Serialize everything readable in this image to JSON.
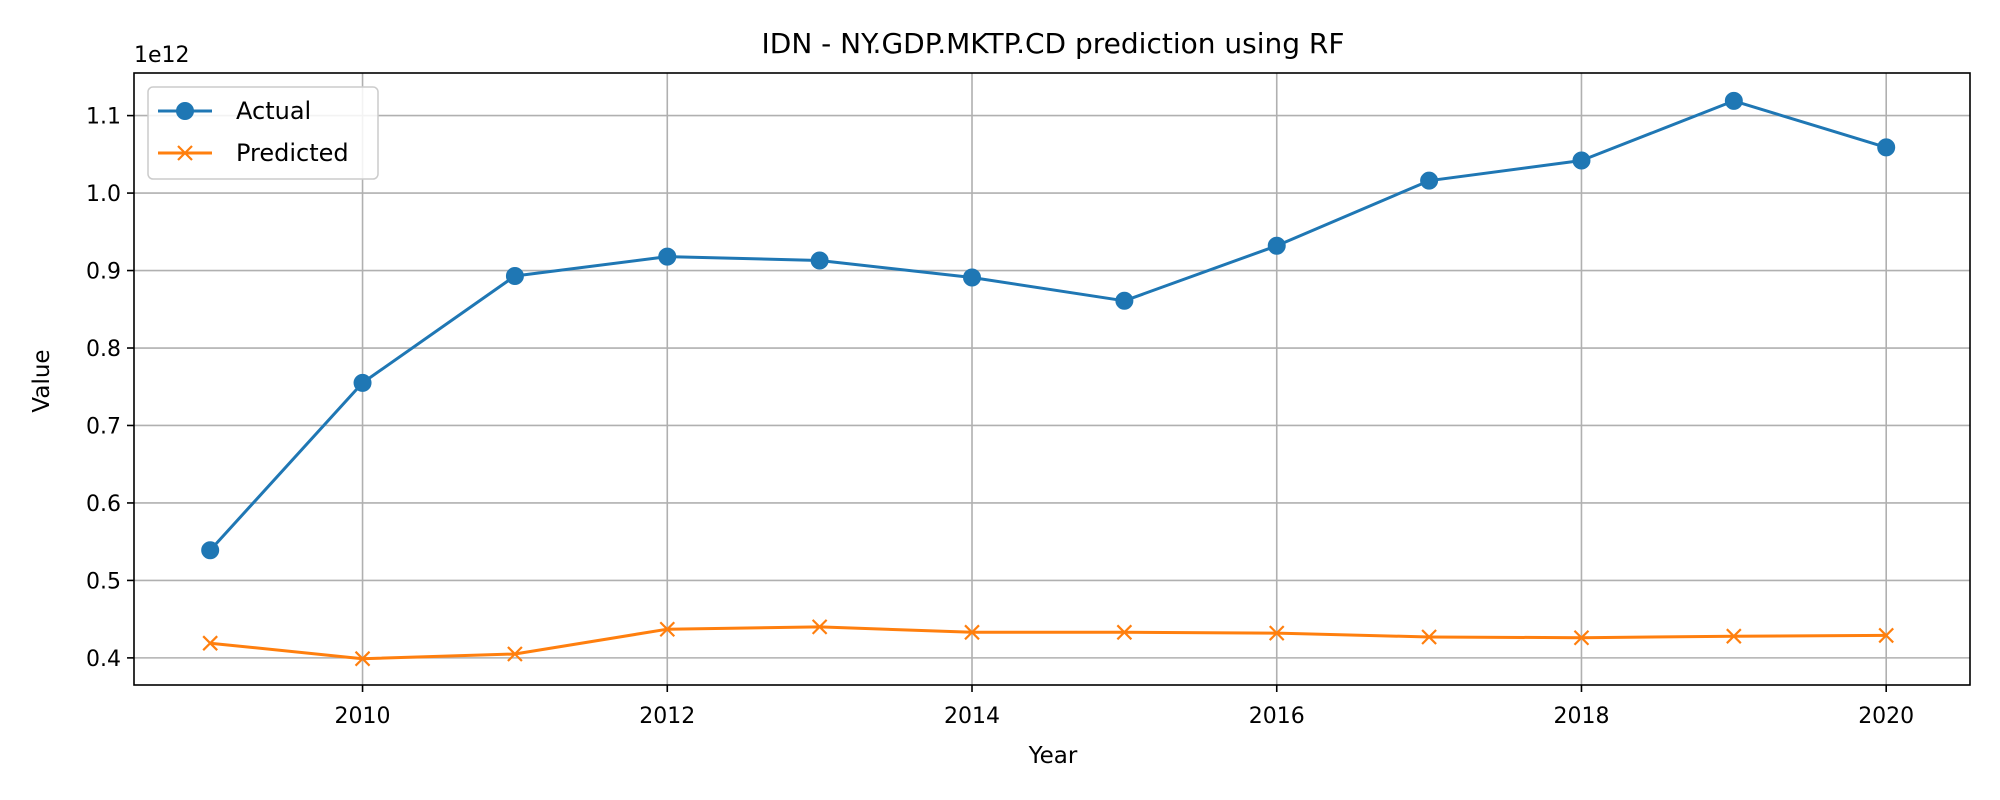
{
  "chart_data": {
    "type": "line",
    "title": "IDN - NY.GDP.MKTP.CD prediction using RF",
    "xlabel": "Year",
    "ylabel": "Value",
    "y_offset_label": "1e12",
    "xlim": [
      2008.5,
      2020.55
    ],
    "ylim": [
      0.365,
      1.155
    ],
    "x_ticks": [
      2010,
      2012,
      2014,
      2016,
      2018,
      2020
    ],
    "y_ticks": [
      0.4,
      0.5,
      0.6,
      0.7,
      0.8,
      0.9,
      1.0,
      1.1
    ],
    "grid": true,
    "legend_position": "top-left",
    "x": [
      2009,
      2010,
      2011,
      2012,
      2013,
      2014,
      2015,
      2016,
      2017,
      2018,
      2019,
      2020
    ],
    "series": [
      {
        "name": "Actual",
        "color": "#1f77b4",
        "marker": "circle",
        "values": [
          0.539,
          0.755,
          0.893,
          0.918,
          0.913,
          0.891,
          0.861,
          0.932,
          1.016,
          1.042,
          1.119,
          1.059
        ]
      },
      {
        "name": "Predicted",
        "color": "#ff7f0e",
        "marker": "x",
        "values": [
          0.419,
          0.399,
          0.405,
          0.437,
          0.44,
          0.433,
          0.433,
          0.432,
          0.427,
          0.426,
          0.428,
          0.429
        ]
      }
    ]
  }
}
